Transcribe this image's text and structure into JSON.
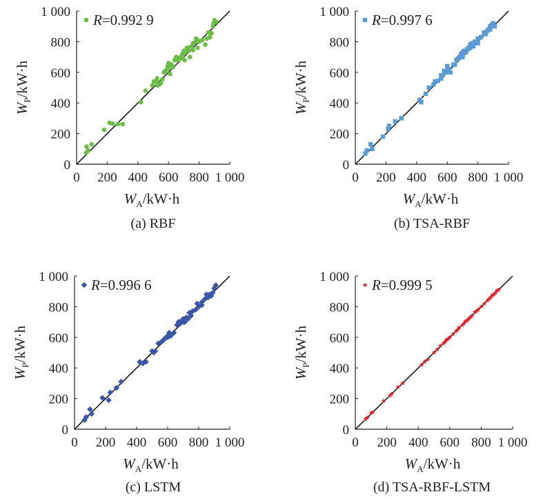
{
  "figure_type": "scatter-grid",
  "chart_data": [
    {
      "type": "scatter",
      "caption": "(a) RBF",
      "legend_text": "R=0.992 9",
      "legend_var": "R",
      "legend_value": "=0.992 9",
      "marker": "circle",
      "color": "#6abd45",
      "xlabel": "WA/kW·h",
      "ylabel": "WP/kW·h",
      "x_var": "W",
      "x_sub": "A",
      "x_unit": "/kW·h",
      "y_var": "W",
      "y_sub": "P",
      "y_unit": "/kW·h",
      "xlim": [
        0,
        1000
      ],
      "ylim": [
        0,
        1000
      ],
      "xticks": [
        "0",
        "200",
        "400",
        "600",
        "800",
        "1 000"
      ],
      "yticks": [
        "0",
        "200",
        "400",
        "600",
        "800",
        "1 000"
      ],
      "reference_line": [
        [
          0,
          0
        ],
        [
          1000,
          1000
        ]
      ],
      "points": [
        [
          62,
          75
        ],
        [
          65,
          115
        ],
        [
          75,
          90
        ],
        [
          98,
          130
        ],
        [
          180,
          225
        ],
        [
          215,
          270
        ],
        [
          235,
          265
        ],
        [
          270,
          262
        ],
        [
          300,
          262
        ],
        [
          420,
          405
        ],
        [
          450,
          480
        ],
        [
          495,
          515
        ],
        [
          505,
          540
        ],
        [
          520,
          540
        ],
        [
          530,
          515
        ],
        [
          540,
          520
        ],
        [
          550,
          530
        ],
        [
          560,
          555
        ],
        [
          570,
          600
        ],
        [
          580,
          610
        ],
        [
          590,
          620
        ],
        [
          595,
          640
        ],
        [
          600,
          660
        ],
        [
          610,
          590
        ],
        [
          620,
          650
        ],
        [
          630,
          635
        ],
        [
          650,
          700
        ],
        [
          660,
          680
        ],
        [
          670,
          685
        ],
        [
          680,
          700
        ],
        [
          690,
          720
        ],
        [
          700,
          740
        ],
        [
          705,
          680
        ],
        [
          710,
          730
        ],
        [
          720,
          760
        ],
        [
          730,
          740
        ],
        [
          740,
          700
        ],
        [
          750,
          770
        ],
        [
          760,
          745
        ],
        [
          770,
          795
        ],
        [
          780,
          820
        ],
        [
          790,
          760
        ],
        [
          800,
          800
        ],
        [
          820,
          810
        ],
        [
          840,
          780
        ],
        [
          850,
          820
        ],
        [
          860,
          860
        ],
        [
          870,
          830
        ],
        [
          880,
          855
        ],
        [
          890,
          900
        ],
        [
          895,
          920
        ],
        [
          900,
          940
        ],
        [
          910,
          930
        ],
        [
          760,
          790
        ],
        [
          600,
          630
        ],
        [
          690,
          700
        ],
        [
          730,
          760
        ],
        [
          790,
          810
        ],
        [
          640,
          680
        ],
        [
          525,
          560
        ]
      ]
    },
    {
      "type": "scatter",
      "caption": "(b) TSA-RBF",
      "legend_text": "R=0.997 6",
      "legend_var": "R",
      "legend_value": "=0.997 6",
      "marker": "square",
      "color": "#5b9bd5",
      "xlabel": "WA/kW·h",
      "ylabel": "WP/kW·h",
      "x_var": "W",
      "x_sub": "A",
      "x_unit": "/kW·h",
      "y_var": "W",
      "y_sub": "P",
      "y_unit": "/kW·h",
      "xlim": [
        0,
        1000
      ],
      "ylim": [
        0,
        1000
      ],
      "xticks": [
        "0",
        "200",
        "400",
        "600",
        "800",
        "1 000"
      ],
      "yticks": [
        "0",
        "200",
        "400",
        "600",
        "800",
        "1 000"
      ],
      "reference_line": [
        [
          0,
          0
        ],
        [
          1000,
          1000
        ]
      ],
      "points": [
        [
          65,
          70
        ],
        [
          75,
          90
        ],
        [
          100,
          130
        ],
        [
          110,
          100
        ],
        [
          180,
          180
        ],
        [
          215,
          230
        ],
        [
          220,
          250
        ],
        [
          260,
          280
        ],
        [
          300,
          300
        ],
        [
          420,
          420
        ],
        [
          430,
          405
        ],
        [
          460,
          460
        ],
        [
          480,
          500
        ],
        [
          510,
          520
        ],
        [
          520,
          540
        ],
        [
          540,
          545
        ],
        [
          560,
          560
        ],
        [
          570,
          580
        ],
        [
          580,
          610
        ],
        [
          590,
          600
        ],
        [
          600,
          640
        ],
        [
          610,
          620
        ],
        [
          620,
          600
        ],
        [
          640,
          650
        ],
        [
          650,
          650
        ],
        [
          670,
          690
        ],
        [
          680,
          700
        ],
        [
          690,
          720
        ],
        [
          700,
          730
        ],
        [
          710,
          740
        ],
        [
          720,
          730
        ],
        [
          740,
          760
        ],
        [
          750,
          780
        ],
        [
          760,
          790
        ],
        [
          780,
          800
        ],
        [
          800,
          820
        ],
        [
          820,
          830
        ],
        [
          840,
          860
        ],
        [
          860,
          870
        ],
        [
          870,
          880
        ],
        [
          880,
          900
        ],
        [
          890,
          910
        ],
        [
          900,
          920
        ],
        [
          910,
          900
        ],
        [
          700,
          700
        ],
        [
          600,
          610
        ],
        [
          750,
          760
        ],
        [
          800,
          790
        ],
        [
          850,
          850
        ],
        [
          660,
          680
        ],
        [
          730,
          750
        ],
        [
          560,
          580
        ],
        [
          880,
          880
        ],
        [
          770,
          770
        ]
      ]
    },
    {
      "type": "scatter",
      "caption": "(c) LSTM",
      "legend_text": "R=0.996 6",
      "legend_var": "R",
      "legend_value": "=0.996 6",
      "marker": "diamond",
      "color": "#3a56a7",
      "xlabel": "WA/kW·h",
      "ylabel": "WP/kW·h",
      "x_var": "W",
      "x_sub": "A",
      "x_unit": "/kW·h",
      "y_var": "W",
      "y_sub": "P",
      "y_unit": "/kW·h",
      "xlim": [
        0,
        1000
      ],
      "ylim": [
        0,
        1000
      ],
      "xticks": [
        "0",
        "200",
        "400",
        "600",
        "800",
        "1 000"
      ],
      "yticks": [
        "0",
        "200",
        "400",
        "600",
        "800",
        "1 000"
      ],
      "reference_line": [
        [
          0,
          0
        ],
        [
          1000,
          1000
        ]
      ],
      "points": [
        [
          65,
          60
        ],
        [
          75,
          80
        ],
        [
          100,
          130
        ],
        [
          110,
          100
        ],
        [
          180,
          205
        ],
        [
          220,
          190
        ],
        [
          230,
          240
        ],
        [
          270,
          270
        ],
        [
          300,
          310
        ],
        [
          420,
          440
        ],
        [
          440,
          430
        ],
        [
          460,
          440
        ],
        [
          500,
          510
        ],
        [
          510,
          500
        ],
        [
          520,
          510
        ],
        [
          540,
          560
        ],
        [
          560,
          570
        ],
        [
          570,
          580
        ],
        [
          580,
          590
        ],
        [
          590,
          600
        ],
        [
          600,
          610
        ],
        [
          610,
          630
        ],
        [
          620,
          610
        ],
        [
          640,
          630
        ],
        [
          660,
          680
        ],
        [
          670,
          700
        ],
        [
          680,
          690
        ],
        [
          690,
          710
        ],
        [
          700,
          720
        ],
        [
          710,
          700
        ],
        [
          720,
          730
        ],
        [
          730,
          720
        ],
        [
          740,
          760
        ],
        [
          760,
          770
        ],
        [
          780,
          780
        ],
        [
          790,
          820
        ],
        [
          800,
          800
        ],
        [
          820,
          830
        ],
        [
          840,
          850
        ],
        [
          860,
          860
        ],
        [
          870,
          880
        ],
        [
          880,
          870
        ],
        [
          890,
          890
        ],
        [
          900,
          920
        ],
        [
          910,
          940
        ],
        [
          600,
          600
        ],
        [
          700,
          700
        ],
        [
          750,
          740
        ],
        [
          820,
          810
        ],
        [
          850,
          880
        ]
      ]
    },
    {
      "type": "scatter",
      "caption": "(d) TSA-RBF-LSTM",
      "legend_text": "R=0.999 5",
      "legend_var": "R",
      "legend_value": "=0.999 5",
      "marker": "star",
      "color": "#e31f26",
      "xlabel": "WA/kW·h",
      "ylabel": "WP/kW·h",
      "x_var": "W",
      "x_sub": "A",
      "x_unit": "/kW·h",
      "y_var": "W",
      "y_sub": "P",
      "y_unit": "/kW·h",
      "xlim": [
        0,
        1000
      ],
      "ylim": [
        0,
        1000
      ],
      "xticks": [
        "0",
        "200",
        "400",
        "600",
        "800",
        "1 000"
      ],
      "yticks": [
        "0",
        "200",
        "400",
        "600",
        "800",
        "1 000"
      ],
      "reference_line": [
        [
          0,
          0
        ],
        [
          1000,
          1000
        ]
      ],
      "points": [
        [
          65,
          65
        ],
        [
          75,
          75
        ],
        [
          100,
          105
        ],
        [
          110,
          110
        ],
        [
          180,
          185
        ],
        [
          220,
          220
        ],
        [
          230,
          230
        ],
        [
          270,
          275
        ],
        [
          300,
          300
        ],
        [
          420,
          420
        ],
        [
          440,
          440
        ],
        [
          460,
          455
        ],
        [
          500,
          500
        ],
        [
          520,
          520
        ],
        [
          540,
          545
        ],
        [
          560,
          560
        ],
        [
          570,
          570
        ],
        [
          580,
          585
        ],
        [
          600,
          600
        ],
        [
          620,
          620
        ],
        [
          640,
          640
        ],
        [
          660,
          665
        ],
        [
          680,
          680
        ],
        [
          690,
          690
        ],
        [
          700,
          705
        ],
        [
          710,
          710
        ],
        [
          720,
          720
        ],
        [
          740,
          740
        ],
        [
          760,
          765
        ],
        [
          780,
          780
        ],
        [
          800,
          800
        ],
        [
          820,
          820
        ],
        [
          840,
          840
        ],
        [
          860,
          860
        ],
        [
          870,
          875
        ],
        [
          880,
          880
        ],
        [
          890,
          890
        ],
        [
          900,
          905
        ],
        [
          910,
          910
        ],
        [
          650,
          650
        ],
        [
          730,
          730
        ],
        [
          770,
          770
        ],
        [
          850,
          850
        ],
        [
          590,
          590
        ]
      ]
    }
  ]
}
